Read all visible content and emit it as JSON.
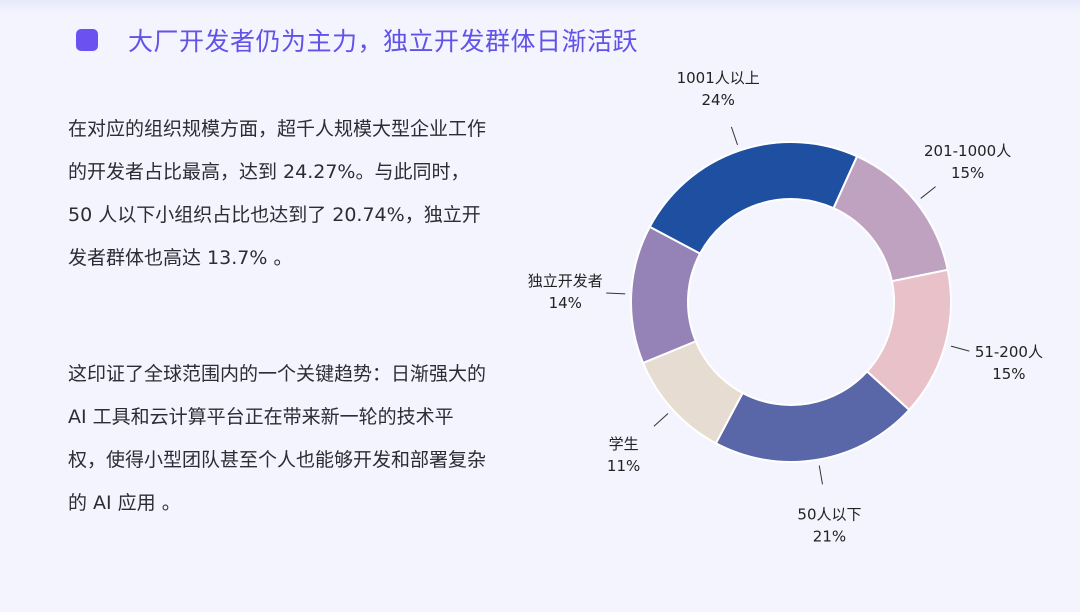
{
  "header": {
    "title": "大厂开发者仍为主力，独立开发群体日渐活跃",
    "title_color": "#6252e8",
    "marker_color": "#6b52f0"
  },
  "body": {
    "paragraph_1": "在对应的组织规模方面，超千人规模大型企业工作的开发者占比最高，达到 24.27%。与此同时，50 人以下小组织占比也达到了 20.74%，独立开发者群体也高达 13.7% 。",
    "paragraph_2": "这印证了全球范围内的一个关键趋势：日渐强大的 AI 工具和云计算平台正在带来新一轮的技术平权，使得小型团队甚至个人也能够开发和部署复杂的 AI 应用 。"
  },
  "chart_data": {
    "type": "pie",
    "donut": true,
    "title": "",
    "slices": [
      {
        "label": "1001人以上",
        "value": 24,
        "value_label": "24%",
        "color": "#1f4fa0"
      },
      {
        "label": "201-1000人",
        "value": 15,
        "value_label": "15%",
        "color": "#bfa2bf"
      },
      {
        "label": "51-200人",
        "value": 15,
        "value_label": "15%",
        "color": "#e9c2c9"
      },
      {
        "label": "50人以下",
        "value": 21,
        "value_label": "21%",
        "color": "#5966a8"
      },
      {
        "label": "学生",
        "value": 11,
        "value_label": "11%",
        "color": "#e6dcd2"
      },
      {
        "label": "独立开发者",
        "value": 14,
        "value_label": "14%",
        "color": "#9583b8"
      }
    ]
  }
}
